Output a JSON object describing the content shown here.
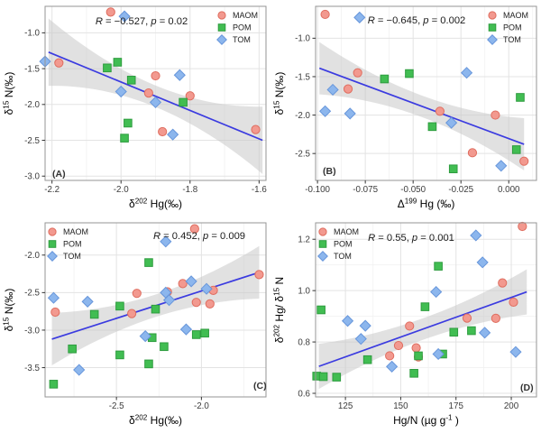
{
  "figure_title": "",
  "legend": {
    "items": [
      {
        "label": "MAOM",
        "marker": "circle",
        "series": "MAOM"
      },
      {
        "label": "POM",
        "marker": "square",
        "series": "POM"
      },
      {
        "label": "TOM",
        "marker": "diamond",
        "series": "TOM"
      }
    ]
  },
  "colors": {
    "maom_fill": "#F2998F",
    "maom_stroke": "#DF6D5F",
    "pom_fill": "#41BD52",
    "pom_stroke": "#2E9C3F",
    "tom_fill": "#8CB6ED",
    "tom_stroke": "#6796DB",
    "regression_line": "#3B3BE0",
    "band": "#C8C8C8",
    "band_opacity": 0.55,
    "grid_major": "#E3E3E3",
    "grid_minor": "#F1F1F1",
    "panel_border": "#969696",
    "tick_text": "#3C3C3C",
    "axis_text": "#000000",
    "annotation_text": "#1A1A1A",
    "tag_text": "#333333",
    "background": "#FFFFFF"
  },
  "chart_data": [
    {
      "id": "A",
      "type": "scatter",
      "tag": "(A)",
      "tag_x": 58,
      "tag_y": 196,
      "annotation": {
        "R": "−0.527",
        "p": "0.02",
        "x": 157,
        "y": 27
      },
      "legend_pos": "top-right",
      "xlabel_parts": [
        {
          "t": "δ"
        },
        {
          "t": "202",
          "sup": true
        },
        {
          "t": " Hg(‰)"
        }
      ],
      "ylabel_parts": [
        {
          "t": "δ"
        },
        {
          "t": "15",
          "sup": true
        },
        {
          "t": " N(‰)"
        }
      ],
      "xlim": [
        -2.22,
        -1.58
      ],
      "ylim": [
        -3.06,
        -0.63
      ],
      "x_ticks": [
        -2.2,
        -2.0,
        -1.8,
        -1.6
      ],
      "x_tick_labels": [
        "-2.2",
        "-2.0",
        "-1.8",
        "-1.6"
      ],
      "y_ticks": [
        -1.0,
        -1.5,
        -2.0,
        -2.5,
        -3.0
      ],
      "y_tick_labels": [
        "-1.0",
        "-1.5",
        "-2.0",
        "-2.5",
        "-3.0"
      ],
      "regression": {
        "x1": -2.21,
        "y1": -1.27,
        "x2": -1.59,
        "y2": -2.5,
        "band_mid": 0.15,
        "band_end": 0.47
      },
      "series": [
        {
          "name": "MAOM",
          "marker": "circle",
          "points": [
            [
              -2.03,
              -0.71
            ],
            [
              -2.18,
              -1.42
            ],
            [
              -1.9,
              -1.6
            ],
            [
              -1.92,
              -1.84
            ],
            [
              -1.8,
              -1.88
            ],
            [
              -1.88,
              -2.38
            ],
            [
              -1.61,
              -2.35
            ]
          ]
        },
        {
          "name": "POM",
          "marker": "square",
          "points": [
            [
              -2.04,
              -1.49
            ],
            [
              -2.01,
              -1.41
            ],
            [
              -1.97,
              -1.66
            ],
            [
              -1.82,
              -1.97
            ],
            [
              -1.98,
              -2.26
            ],
            [
              -1.99,
              -2.47
            ]
          ]
        },
        {
          "name": "TOM",
          "marker": "diamond",
          "points": [
            [
              -1.99,
              -0.77
            ],
            [
              -2.22,
              -1.4
            ],
            [
              -2.0,
              -1.82
            ],
            [
              -1.83,
              -1.59
            ],
            [
              -1.9,
              -1.97
            ],
            [
              -1.85,
              -2.42
            ]
          ]
        }
      ]
    },
    {
      "id": "B",
      "type": "scatter",
      "tag": "(B)",
      "tag_x": 58,
      "tag_y": 193,
      "annotation": {
        "R": "−0.645",
        "p": "0.002",
        "x": 162,
        "y": 26
      },
      "legend_pos": "top-right",
      "xlabel_parts": [
        {
          "t": "Δ"
        },
        {
          "t": "199",
          "sup": true
        },
        {
          "t": " Hg (‰)"
        }
      ],
      "ylabel_parts": [
        {
          "t": "δ"
        },
        {
          "t": "15",
          "sup": true
        },
        {
          "t": " N(‰)"
        }
      ],
      "xlim": [
        -0.101,
        0.0145
      ],
      "ylim": [
        -2.85,
        -0.585
      ],
      "x_ticks": [
        -0.1,
        -0.075,
        -0.05,
        -0.025,
        0.0
      ],
      "x_tick_labels": [
        "-0.100",
        "-0.075",
        "-0.050",
        "-0.025",
        "0.000"
      ],
      "y_ticks": [
        -1.0,
        -1.5,
        -2.0,
        -2.5
      ],
      "y_tick_labels": [
        "-1.0",
        "-1.5",
        "-2.0",
        "-2.5"
      ],
      "regression": {
        "x1": -0.099,
        "y1": -1.39,
        "x2": 0.008,
        "y2": -2.38,
        "band_mid": 0.14,
        "band_end": 0.34
      },
      "series": [
        {
          "name": "MAOM",
          "marker": "circle",
          "points": [
            [
              -0.096,
              -0.69
            ],
            [
              -0.079,
              -1.45
            ],
            [
              -0.084,
              -1.66
            ],
            [
              -0.036,
              -1.95
            ],
            [
              -0.007,
              -2.0
            ],
            [
              -0.019,
              -2.49
            ],
            [
              0.008,
              -2.6
            ]
          ]
        },
        {
          "name": "POM",
          "marker": "square",
          "points": [
            [
              -0.065,
              -1.53
            ],
            [
              -0.052,
              -1.46
            ],
            [
              0.006,
              -1.77
            ],
            [
              -0.04,
              -2.15
            ],
            [
              0.004,
              -2.45
            ],
            [
              -0.029,
              -2.7
            ]
          ]
        },
        {
          "name": "TOM",
          "marker": "diamond",
          "points": [
            [
              -0.078,
              -0.73
            ],
            [
              -0.092,
              -1.67
            ],
            [
              -0.096,
              -1.95
            ],
            [
              -0.083,
              -1.98
            ],
            [
              -0.022,
              -1.45
            ],
            [
              -0.03,
              -2.1
            ],
            [
              -0.004,
              -2.66
            ]
          ]
        }
      ]
    },
    {
      "id": "C",
      "type": "scatter",
      "tag": "(C)",
      "tag_x": 281,
      "tag_y": 191,
      "annotation": {
        "R": "0.452",
        "p": "0.009",
        "x": 221,
        "y": 25
      },
      "legend_pos": "top-left",
      "xlabel_parts": [
        {
          "t": "δ"
        },
        {
          "t": "202",
          "sup": true
        },
        {
          "t": " Hg(‰)"
        }
      ],
      "ylabel_parts": [
        {
          "t": "δ"
        },
        {
          "t": "15",
          "sup": true
        },
        {
          "t": " N(‰)"
        }
      ],
      "xlim": [
        -2.92,
        -1.62
      ],
      "ylim": [
        -3.89,
        -1.57
      ],
      "x_ticks": [
        -2.5,
        -2.0
      ],
      "x_tick_labels": [
        "-2.5",
        "-2.0"
      ],
      "y_ticks": [
        -2.0,
        -2.5,
        -3.0,
        -3.5
      ],
      "y_tick_labels": [
        "-2.0",
        "-2.5",
        "-3.0",
        "-3.5"
      ],
      "regression": {
        "x1": -2.88,
        "y1": -3.12,
        "x2": -1.66,
        "y2": -2.23,
        "band_mid": 0.15,
        "band_end": 0.35
      },
      "series": [
        {
          "name": "MAOM",
          "marker": "circle",
          "points": [
            [
              -2.04,
              -1.65
            ],
            [
              -2.38,
              -2.51
            ],
            [
              -2.2,
              -2.49
            ],
            [
              -2.11,
              -2.38
            ],
            [
              -1.93,
              -2.47
            ],
            [
              -2.03,
              -2.63
            ],
            [
              -1.95,
              -2.65
            ],
            [
              -2.41,
              -2.78
            ],
            [
              -2.86,
              -2.76
            ],
            [
              -1.66,
              -2.26
            ]
          ]
        },
        {
          "name": "POM",
          "marker": "square",
          "points": [
            [
              -2.31,
              -2.1
            ],
            [
              -2.48,
              -2.68
            ],
            [
              -2.63,
              -2.79
            ],
            [
              -2.27,
              -2.72
            ],
            [
              -2.03,
              -3.06
            ],
            [
              -1.98,
              -3.04
            ],
            [
              -2.76,
              -3.25
            ],
            [
              -2.48,
              -3.33
            ],
            [
              -2.29,
              -3.1
            ],
            [
              -2.22,
              -3.22
            ],
            [
              -2.31,
              -3.45
            ],
            [
              -2.87,
              -3.72
            ]
          ]
        },
        {
          "name": "TOM",
          "marker": "diamond",
          "points": [
            [
              -2.21,
              -1.82
            ],
            [
              -2.67,
              -2.62
            ],
            [
              -2.87,
              -2.57
            ],
            [
              -2.06,
              -2.35
            ],
            [
              -1.97,
              -2.45
            ],
            [
              -2.21,
              -2.5
            ],
            [
              -2.19,
              -2.6
            ],
            [
              -2.09,
              -2.99
            ],
            [
              -2.33,
              -3.08
            ],
            [
              -2.72,
              -3.53
            ]
          ]
        }
      ]
    },
    {
      "id": "D",
      "type": "scatter",
      "tag": "(D)",
      "tag_x": 277,
      "tag_y": 193,
      "annotation": {
        "R": "0.55",
        "p": "0.001",
        "x": 156,
        "y": 27
      },
      "legend_pos": "top-left",
      "xlabel_parts": [
        {
          "t": "Hg/N (µg g"
        },
        {
          "t": "-1",
          "sup": true
        },
        {
          "t": " )"
        }
      ],
      "ylabel_parts": [
        {
          "t": "δ"
        },
        {
          "t": "202",
          "sup": true
        },
        {
          "t": " Hg/ δ"
        },
        {
          "t": "15",
          "sup": true
        },
        {
          "t": " N"
        }
      ],
      "xlim": [
        111.5,
        211.4
      ],
      "ylim": [
        0.586,
        1.264
      ],
      "x_ticks": [
        125,
        150,
        175,
        200
      ],
      "x_tick_labels": [
        "125",
        "150",
        "175",
        "200"
      ],
      "y_ticks": [
        0.6,
        0.8,
        1.0,
        1.2
      ],
      "y_tick_labels": [
        "0.6",
        "0.8",
        "1.0",
        "1.2"
      ],
      "regression": {
        "x1": 113,
        "y1": 0.705,
        "x2": 207,
        "y2": 0.995,
        "band_mid": 0.042,
        "band_end": 0.088
      },
      "series": [
        {
          "name": "MAOM",
          "marker": "circle",
          "points": [
            [
              205,
              1.25
            ],
            [
              196,
              1.03
            ],
            [
              201,
              0.955
            ],
            [
              180,
              0.893
            ],
            [
              193,
              0.892
            ],
            [
              154,
              0.862
            ],
            [
              149,
              0.786
            ],
            [
              157,
              0.777
            ],
            [
              145,
              0.746
            ],
            [
              158,
              0.742
            ]
          ]
        },
        {
          "name": "POM",
          "marker": "square",
          "points": [
            [
              114,
              0.925
            ],
            [
              161,
              0.937
            ],
            [
              167,
              1.095
            ],
            [
              174,
              0.838
            ],
            [
              182,
              0.844
            ],
            [
              135,
              0.731
            ],
            [
              158,
              0.746
            ],
            [
              169,
              0.753
            ],
            [
              156,
              0.678
            ],
            [
              112,
              0.667
            ],
            [
              115,
              0.665
            ],
            [
              121,
              0.663
            ]
          ]
        },
        {
          "name": "TOM",
          "marker": "diamond",
          "points": [
            [
              184,
              1.215
            ],
            [
              187,
              1.11
            ],
            [
              166,
              0.995
            ],
            [
              126,
              0.882
            ],
            [
              134,
              0.863
            ],
            [
              132,
              0.812
            ],
            [
              188,
              0.836
            ],
            [
              167,
              0.753
            ],
            [
              146,
              0.704
            ],
            [
              202,
              0.761
            ]
          ]
        }
      ]
    }
  ]
}
